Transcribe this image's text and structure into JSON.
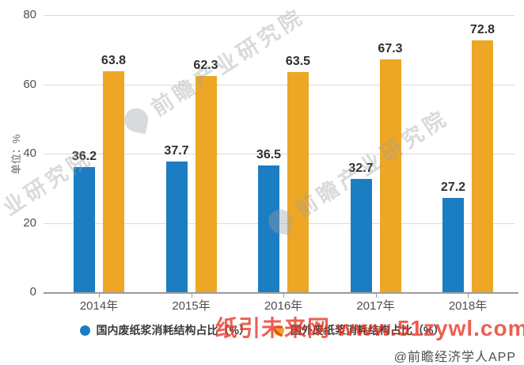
{
  "chart_data": {
    "type": "bar",
    "categories": [
      "2014年",
      "2015年",
      "2016年",
      "2017年",
      "2018年"
    ],
    "series": [
      {
        "name": "国内废纸浆消耗结构占比（%）",
        "color": "#1B7DC2",
        "values": [
          36.2,
          37.7,
          36.5,
          32.7,
          27.2
        ]
      },
      {
        "name": "国外废纸浆消耗结构占比（%）",
        "color": "#EDA724",
        "values": [
          63.8,
          62.3,
          63.5,
          67.3,
          72.8
        ]
      }
    ],
    "title": "",
    "xlabel": "",
    "ylabel": "单位：%",
    "ylim": [
      0,
      80
    ],
    "yticks": [
      0,
      20,
      40,
      60,
      80
    ],
    "grid": true,
    "legend_position": "bottom",
    "value_labels_shown": true
  },
  "watermark": {
    "diagonal_text": "前瞻产业研究院",
    "overlay_text": "纸引未来网 www.51zywl.com",
    "credit": "@前瞻经济学人APP"
  },
  "colors": {
    "series_domestic": "#1B7DC2",
    "series_foreign": "#EDA724",
    "gridline": "#DBDBDB",
    "axis_line": "#9B9B9B",
    "value_label_text": "#2F2F2F",
    "axis_tick_text": "#4F4F4F",
    "legend_text": "#3A3A3A",
    "diagonal_watermark": "#9AA0A6",
    "overlay_watermark_red": "rgba(231,50,33,0.78)",
    "credit_text": "#4D4D4D"
  }
}
